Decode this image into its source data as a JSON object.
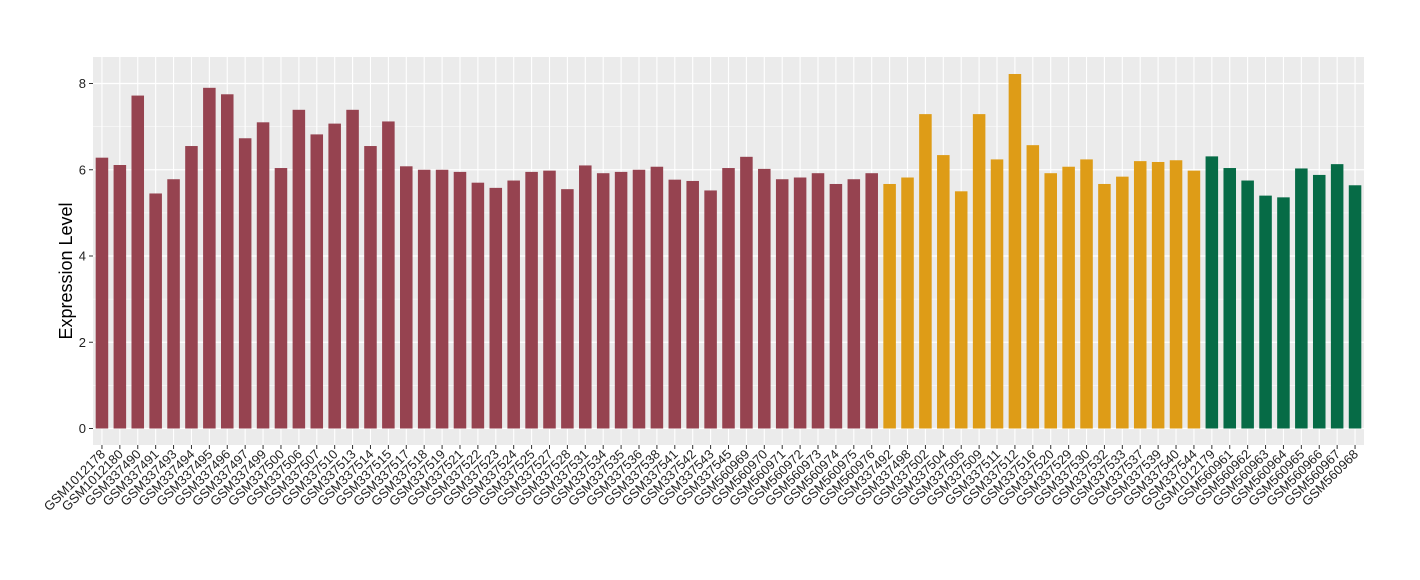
{
  "chart_data": {
    "type": "bar",
    "title": "",
    "xlabel": "",
    "ylabel": "Expression Level",
    "ylim": [
      0,
      8.6
    ],
    "yticks": [
      0,
      2,
      4,
      6,
      8
    ],
    "grid": true,
    "legend": "none",
    "colors": {
      "panel_bg": "#EBEBEB",
      "grid": "#FFFFFF",
      "group1": "#964350",
      "group2": "#DE9C17",
      "group3": "#066B46"
    },
    "categories": [
      "GSM1012178",
      "GSM1012180",
      "GSM337490",
      "GSM337491",
      "GSM337493",
      "GSM337494",
      "GSM337495",
      "GSM337496",
      "GSM337497",
      "GSM337499",
      "GSM337500",
      "GSM337506",
      "GSM337507",
      "GSM337510",
      "GSM337513",
      "GSM337514",
      "GSM337515",
      "GSM337517",
      "GSM337518",
      "GSM337519",
      "GSM337521",
      "GSM337522",
      "GSM337523",
      "GSM337524",
      "GSM337525",
      "GSM337527",
      "GSM337528",
      "GSM337531",
      "GSM337534",
      "GSM337535",
      "GSM337536",
      "GSM337538",
      "GSM337541",
      "GSM337542",
      "GSM337543",
      "GSM337545",
      "GSM560969",
      "GSM560970",
      "GSM560971",
      "GSM560972",
      "GSM560973",
      "GSM560974",
      "GSM560975",
      "GSM560976",
      "GSM337492",
      "GSM337498",
      "GSM337502",
      "GSM337504",
      "GSM337505",
      "GSM337509",
      "GSM337511",
      "GSM337512",
      "GSM337516",
      "GSM337520",
      "GSM337529",
      "GSM337530",
      "GSM337532",
      "GSM337533",
      "GSM337537",
      "GSM337539",
      "GSM337540",
      "GSM337544",
      "GSM1012179",
      "GSM560961",
      "GSM560962",
      "GSM560963",
      "GSM560964",
      "GSM560965",
      "GSM560966",
      "GSM560967",
      "GSM560968"
    ],
    "values": [
      6.28,
      6.11,
      7.72,
      5.45,
      5.78,
      6.55,
      7.9,
      7.75,
      6.73,
      7.1,
      6.04,
      7.39,
      6.82,
      7.07,
      7.39,
      6.55,
      7.12,
      6.08,
      6.0,
      6.0,
      5.95,
      5.7,
      5.58,
      5.75,
      5.95,
      5.98,
      5.55,
      6.1,
      5.92,
      5.95,
      6.0,
      6.07,
      5.77,
      5.74,
      5.52,
      6.04,
      6.3,
      6.02,
      5.78,
      5.82,
      5.92,
      5.67,
      5.78,
      5.92,
      5.67,
      5.82,
      7.29,
      6.34,
      5.5,
      7.29,
      6.24,
      8.22,
      6.57,
      5.92,
      6.07,
      6.24,
      5.67,
      5.84,
      6.2,
      6.18,
      6.22,
      5.98,
      6.31,
      6.04,
      5.75,
      5.4,
      5.36,
      6.03,
      5.88,
      6.13,
      5.64
    ],
    "groups": [
      1,
      1,
      1,
      1,
      1,
      1,
      1,
      1,
      1,
      1,
      1,
      1,
      1,
      1,
      1,
      1,
      1,
      1,
      1,
      1,
      1,
      1,
      1,
      1,
      1,
      1,
      1,
      1,
      1,
      1,
      1,
      1,
      1,
      1,
      1,
      1,
      1,
      1,
      1,
      1,
      1,
      1,
      1,
      1,
      2,
      2,
      2,
      2,
      2,
      2,
      2,
      2,
      2,
      2,
      2,
      2,
      2,
      2,
      2,
      2,
      2,
      2,
      3,
      3,
      3,
      3,
      3,
      3,
      3,
      3,
      3
    ]
  }
}
